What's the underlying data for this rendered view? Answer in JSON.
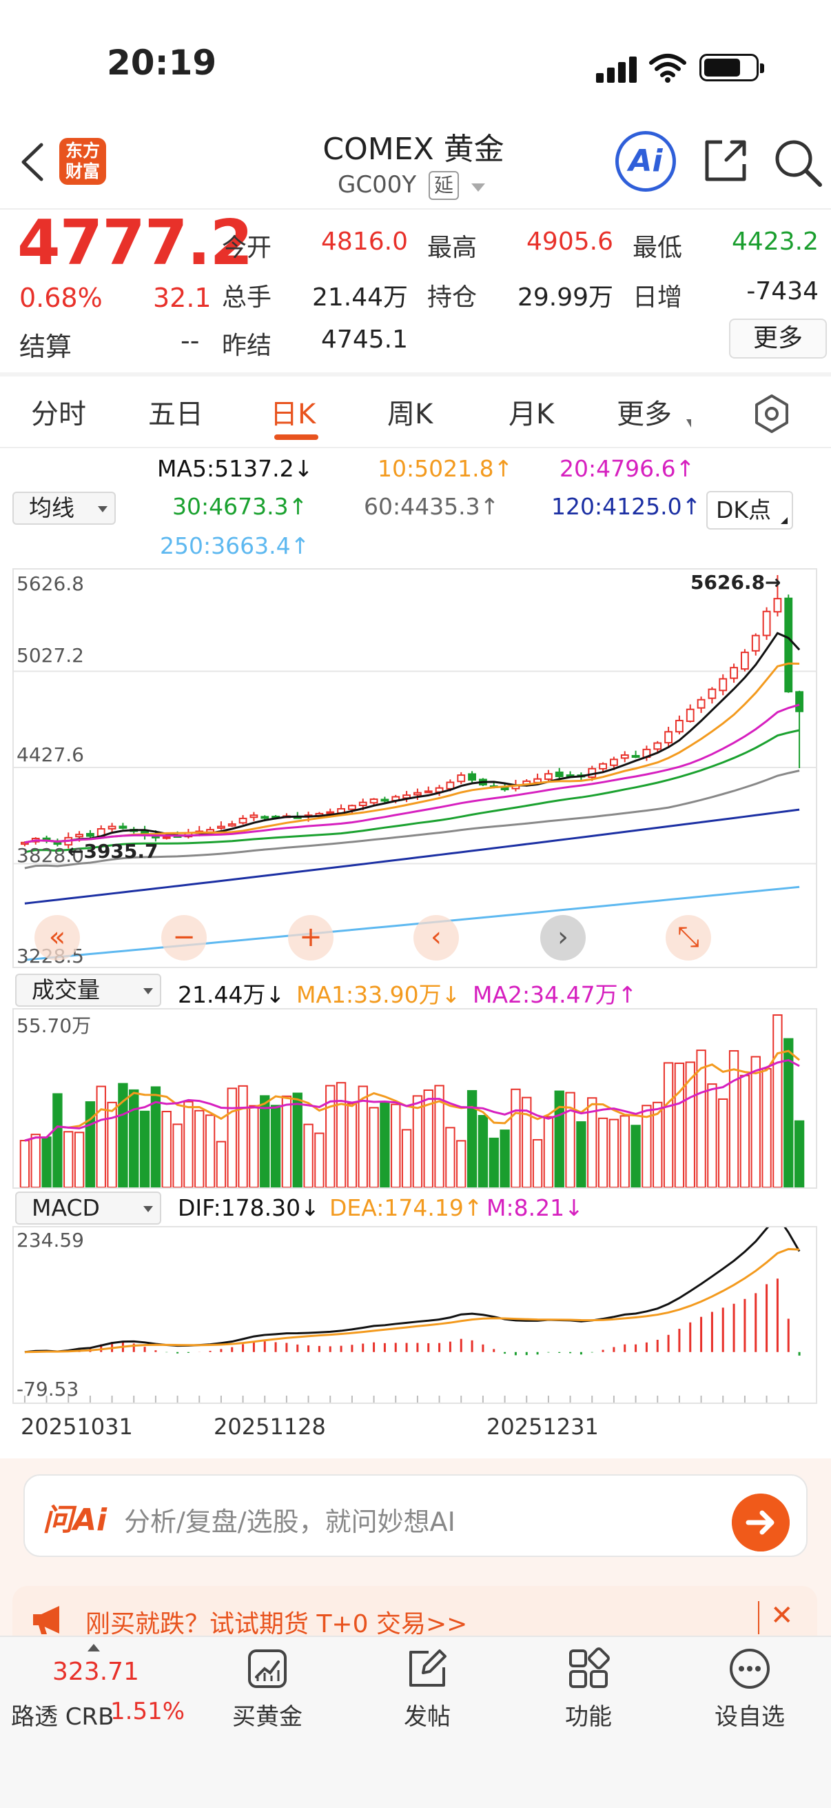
{
  "status": {
    "time": "20:19"
  },
  "nav": {
    "title": "COMEX 黄金",
    "code": "GC00Y",
    "delay_badge": "延",
    "logo_line1": "东方",
    "logo_line2": "财富",
    "ai_label": "Ai"
  },
  "quote": {
    "price": "4777.2",
    "change_pct": "0.68%",
    "change": "32.1",
    "open_label": "今开",
    "open": "4816.0",
    "high_label": "最高",
    "high": "4905.6",
    "low_label": "最低",
    "low": "4423.2",
    "volume_label": "总手",
    "volume": "21.44万",
    "position_label": "持仓",
    "position": "29.99万",
    "daily_inc_label": "日增",
    "daily_inc": "-7434",
    "settle_label": "结算",
    "settle": "--",
    "prev_settle_label": "昨结",
    "prev_settle": "4745.1",
    "more_button": "更多"
  },
  "tabs": [
    "分时",
    "五日",
    "日K",
    "周K",
    "月K",
    "更多"
  ],
  "active_tab": "日K",
  "ma_legend": {
    "selector": "均线",
    "ma5": "MA5:5137.2↓",
    "ma10": "10:5021.8↑",
    "ma20": "20:4796.6↑",
    "ma30": "30:4673.3↑",
    "ma60": "60:4435.3↑",
    "ma120": "120:4125.0↑",
    "ma250": "250:3663.4↑",
    "dk_button": "DK点"
  },
  "colors": {
    "up": "#e8312a",
    "down": "#1a9e2e",
    "ma5": "#111111",
    "ma10": "#f39a1e",
    "ma20": "#d61fbf",
    "ma30": "#1aa12f",
    "ma60": "#888888",
    "ma120": "#1b2fa3",
    "ma250": "#5db8f0",
    "accent": "#e8531e"
  },
  "price_axis": {
    "top": "5626.8",
    "l2": "5027.2",
    "l3": "4427.6",
    "l4": "3828.0",
    "bottom": "3228.5",
    "max_marker": "5626.8→",
    "min_marker": "←3935.7"
  },
  "chart_controls": [
    "«",
    "−",
    "+",
    "‹",
    "›",
    "⤡"
  ],
  "volume": {
    "selector": "成交量",
    "current": "21.44万↓",
    "ma1": "MA1:33.90万↓",
    "ma2": "MA2:34.47万↑",
    "axis_top": "55.70万"
  },
  "macd": {
    "selector": "MACD",
    "dif": "DIF:178.30↓",
    "dea": "DEA:174.19↑",
    "m": "M:8.21↓",
    "axis_top": "234.59",
    "axis_bottom": "-79.53"
  },
  "date_axis": [
    "20251031",
    "20251128",
    "20251231"
  ],
  "ask_ai": {
    "logo": "问Ai",
    "placeholder": "分析/复盘/选股，就问妙想AI"
  },
  "promo": {
    "text": "刚买就跌？试试期货 T+0 交易>>",
    "close": "✕"
  },
  "tabbar": {
    "crb_value": "323.71",
    "crb_label": "路透 CRB",
    "crb_pct": "1.51%",
    "buy_gold": "买黄金",
    "post": "发帖",
    "features": "功能",
    "watchlist": "设自选"
  },
  "chart_data": {
    "type": "candlestick",
    "price_range": [
      3228.5,
      5626.8
    ],
    "closes": [
      3960,
      3985,
      3970,
      3950,
      3990,
      4010,
      4000,
      4045,
      4060,
      4050,
      4030,
      4005,
      3990,
      3995,
      4000,
      4020,
      4030,
      4040,
      4060,
      4075,
      4110,
      4130,
      4120,
      4115,
      4125,
      4118,
      4130,
      4140,
      4150,
      4170,
      4190,
      4210,
      4230,
      4220,
      4245,
      4255,
      4270,
      4280,
      4300,
      4335,
      4380,
      4350,
      4320,
      4305,
      4290,
      4318,
      4342,
      4356,
      4388,
      4372,
      4380,
      4370,
      4420,
      4450,
      4478,
      4505,
      4495,
      4540,
      4580,
      4650,
      4720,
      4790,
      4850,
      4915,
      4980,
      5050,
      5145,
      5250,
      5400,
      5480,
      4900,
      4777
    ]
  }
}
